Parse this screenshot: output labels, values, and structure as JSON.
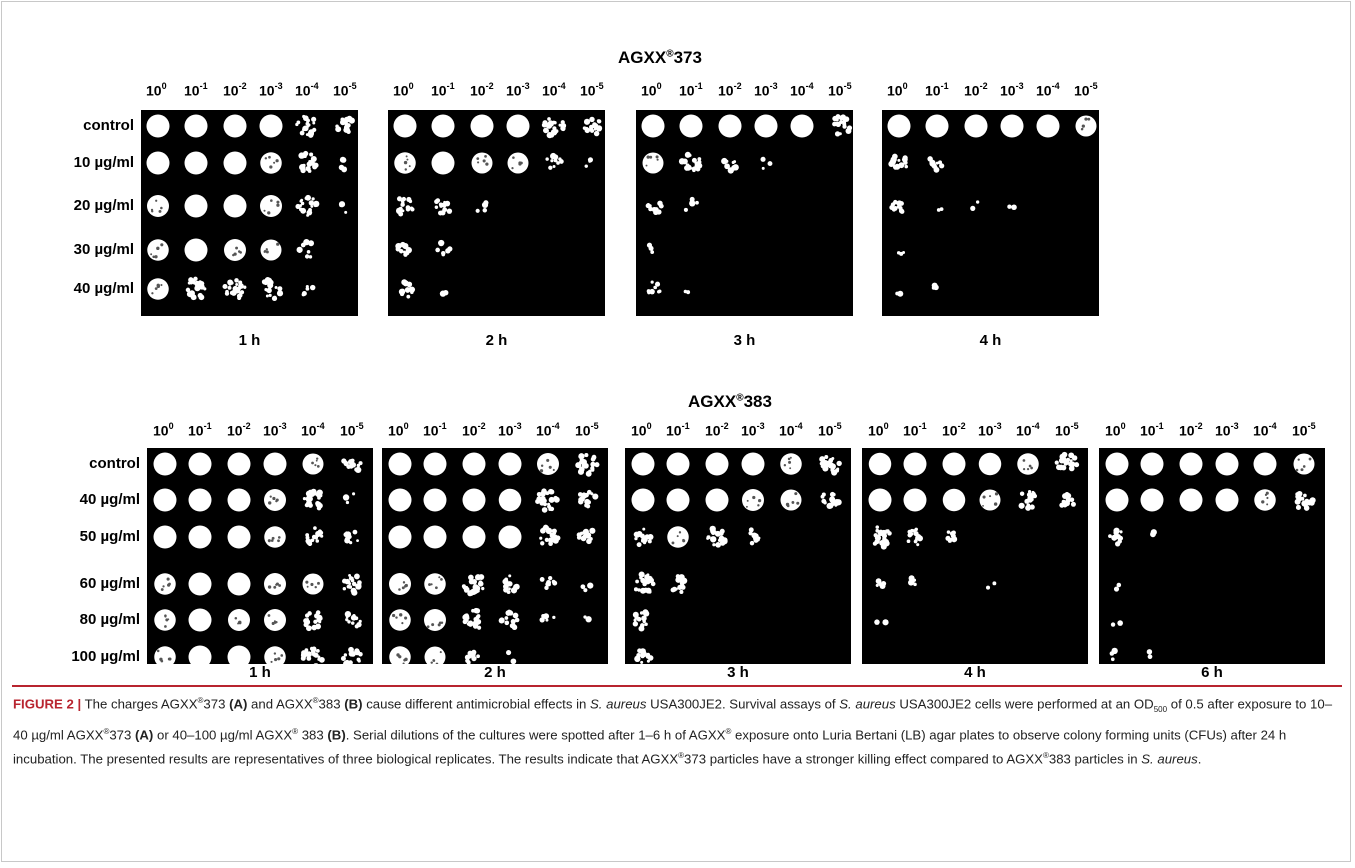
{
  "figure": {
    "panel_a": {
      "letter": "A",
      "title_prefix": "AGXX",
      "title_mark": "®",
      "title_suffix": "373",
      "dilution_base": "10",
      "dilution_exponents": [
        "0",
        "-1",
        "-2",
        "-3",
        "-4",
        "-5"
      ],
      "rows": [
        "control",
        "10 µg/ml",
        "20 µg/ml",
        "30 µg/ml",
        "40 µg/ml"
      ],
      "plates": [
        {
          "time": "1 h",
          "growth": [
            [
              1,
              1,
              1,
              1,
              0.75,
              0.45
            ],
            [
              1,
              1,
              1,
              0.85,
              0.6,
              0.15
            ],
            [
              0.9,
              1,
              1,
              0.9,
              0.6,
              0.1
            ],
            [
              0.85,
              1,
              0.9,
              0.8,
              0.35,
              0
            ],
            [
              0.85,
              0.75,
              0.75,
              0.7,
              0.15,
              0
            ]
          ]
        },
        {
          "time": "2 h",
          "growth": [
            [
              1,
              1,
              1,
              1,
              0.7,
              0.5
            ],
            [
              0.85,
              1,
              0.8,
              0.8,
              0.35,
              0.1
            ],
            [
              0.6,
              0.4,
              0.15,
              0,
              0,
              0
            ],
            [
              0.35,
              0.2,
              0,
              0,
              0,
              0
            ],
            [
              0.4,
              0.05,
              0,
              0,
              0,
              0
            ]
          ]
        },
        {
          "time": "3 h",
          "growth": [
            [
              1,
              1,
              1,
              1,
              1,
              0.65
            ],
            [
              0.8,
              0.6,
              0.3,
              0.1,
              0,
              0
            ],
            [
              0.45,
              0.2,
              0,
              0,
              0,
              0
            ],
            [
              0.1,
              0,
              0,
              0,
              0,
              0
            ],
            [
              0.3,
              0.05,
              0,
              0,
              0,
              0
            ]
          ]
        },
        {
          "time": "4 h",
          "growth": [
            [
              1,
              1,
              1,
              1,
              1,
              0.8
            ],
            [
              0.5,
              0.35,
              0,
              0,
              0,
              0
            ],
            [
              0.35,
              0.05,
              0.05,
              0.05,
              0,
              0
            ],
            [
              0.1,
              0,
              0,
              0,
              0,
              0
            ],
            [
              0.05,
              0.1,
              0,
              0,
              0,
              0
            ]
          ]
        }
      ]
    },
    "panel_b": {
      "letter": "B",
      "title_prefix": "AGXX",
      "title_mark": "®",
      "title_suffix": "383",
      "dilution_base": "10",
      "dilution_exponents": [
        "0",
        "-1",
        "-2",
        "-3",
        "-4",
        "-5"
      ],
      "rows": [
        "control",
        "40 µg/ml",
        "50 µg/ml",
        "60 µg/ml",
        "80 µg/ml",
        "100 µg/ml"
      ],
      "plates": [
        {
          "time": "1 h",
          "growth": [
            [
              1,
              1,
              1,
              1,
              0.8,
              0.5
            ],
            [
              1,
              1,
              1,
              0.9,
              0.75,
              0.1
            ],
            [
              1,
              1,
              1,
              0.85,
              0.55,
              0.35
            ],
            [
              0.85,
              1,
              1,
              0.9,
              0.8,
              0.55
            ],
            [
              0.85,
              1,
              0.9,
              0.9,
              0.6,
              0.4
            ],
            [
              0.85,
              1,
              1,
              0.85,
              0.7,
              0.5
            ]
          ]
        },
        {
          "time": "2 h",
          "growth": [
            [
              1,
              1,
              1,
              1,
              0.9,
              0.75
            ],
            [
              1,
              1,
              1,
              0.95,
              0.75,
              0.5
            ],
            [
              1,
              1,
              1,
              1,
              0.7,
              0.4
            ],
            [
              0.9,
              0.85,
              0.75,
              0.45,
              0.25,
              0.1
            ],
            [
              0.85,
              0.9,
              0.65,
              0.5,
              0.15,
              0.05
            ],
            [
              0.85,
              0.8,
              0.35,
              0.05,
              0,
              0
            ]
          ]
        },
        {
          "time": "3 h",
          "growth": [
            [
              1,
              1,
              1,
              1,
              0.85,
              0.65
            ],
            [
              1,
              1,
              1,
              0.9,
              0.8,
              0.55
            ],
            [
              0.45,
              0.85,
              0.6,
              0.3,
              0,
              0
            ],
            [
              0.75,
              0.45,
              0,
              0,
              0,
              0
            ],
            [
              0.5,
              0,
              0,
              0,
              0,
              0
            ],
            [
              0.35,
              0,
              0,
              0,
              0,
              0
            ]
          ]
        },
        {
          "time": "4 h",
          "growth": [
            [
              0.95,
              1,
              1,
              0.95,
              0.85,
              0.75
            ],
            [
              1,
              1,
              0.95,
              0.8,
              0.55,
              0.35
            ],
            [
              0.75,
              0.5,
              0.25,
              0,
              0,
              0
            ],
            [
              0.15,
              0.15,
              0,
              0.05,
              0,
              0
            ],
            [
              0.05,
              0,
              0,
              0,
              0,
              0
            ],
            [
              0,
              0,
              0,
              0,
              0,
              0
            ]
          ]
        },
        {
          "time": "6 h",
          "growth": [
            [
              1,
              1,
              1,
              1,
              1,
              0.8
            ],
            [
              1,
              1,
              1,
              1,
              0.85,
              0.55
            ],
            [
              0.35,
              0.05,
              0,
              0,
              0,
              0
            ],
            [
              0.05,
              0,
              0,
              0,
              0,
              0
            ],
            [
              0.05,
              0,
              0,
              0,
              0,
              0
            ],
            [
              0.1,
              0.05,
              0,
              0,
              0,
              0
            ]
          ]
        }
      ]
    },
    "caption": {
      "label": "FIGURE 2 |",
      "s1": " The charges AGXX",
      "s2": "373 ",
      "s3": "(A)",
      "s4": " and AGXX",
      "s5": "383 ",
      "s6": "(B)",
      "s7": " cause different antimicrobial effects in ",
      "s8": "S. aureus",
      "s9": " USA300JE2. Survival assays of ",
      "s10": "S. aureus",
      "s11": " USA300JE2 cells were performed at an OD",
      "s12": "500",
      "s13": " of 0.5 after exposure to 10–40 µg/ml AGXX",
      "s14": "373 ",
      "s15": "(A)",
      "s16": " or 40–100 µg/ml AGXX",
      "s17": " 383 ",
      "s18": "(B)",
      "s19": ". Serial dilutions of the cultures were spotted after 1–6 h of AGXX",
      "s20": " exposure onto Luria Bertani (LB) agar plates to observe colony forming units (CFUs) after 24 h incubation. The presented results are representatives of three biological replicates. The results indicate that AGXX",
      "s21": "373 particles have a stronger killing effect compared to AGXX",
      "s22": "383 particles in ",
      "s23": "S. aureus",
      "s24": ".",
      "reg": "®"
    }
  }
}
